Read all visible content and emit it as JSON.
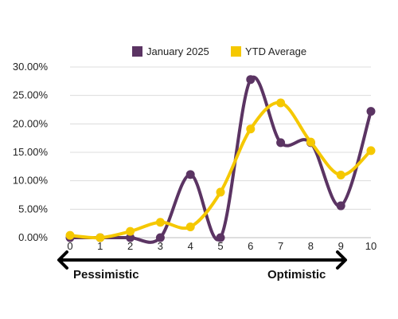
{
  "chart_data": {
    "type": "line",
    "x": [
      0,
      1,
      2,
      3,
      4,
      5,
      6,
      7,
      8,
      9,
      10
    ],
    "x_tick_labels": [
      "0",
      "1",
      "2",
      "3",
      "4",
      "5",
      "6",
      "7",
      "8",
      "9",
      "10"
    ],
    "y_tick_labels": [
      "0.00%",
      "5.00%",
      "10.00%",
      "15.00%",
      "20.00%",
      "25.00%",
      "30.00%"
    ],
    "y_ticks": [
      0,
      5,
      10,
      15,
      20,
      25,
      30
    ],
    "ylim": [
      0,
      30
    ],
    "y_unit": "percent",
    "grid": true,
    "smooth": true,
    "legend_position": "top",
    "series": [
      {
        "name": "January 2025",
        "color": "#5b3463",
        "values": [
          0.0,
          0.0,
          0.0,
          0.0,
          11.1,
          0.0,
          27.8,
          16.7,
          16.7,
          5.6,
          22.2
        ]
      },
      {
        "name": "YTD Average",
        "color": "#f5c800",
        "values": [
          0.4,
          0.0,
          1.1,
          2.7,
          1.9,
          8.0,
          19.1,
          23.7,
          16.8,
          11.0,
          15.3
        ]
      }
    ],
    "annotations": {
      "left": "Pessimistic",
      "right": "Optimistic"
    }
  }
}
